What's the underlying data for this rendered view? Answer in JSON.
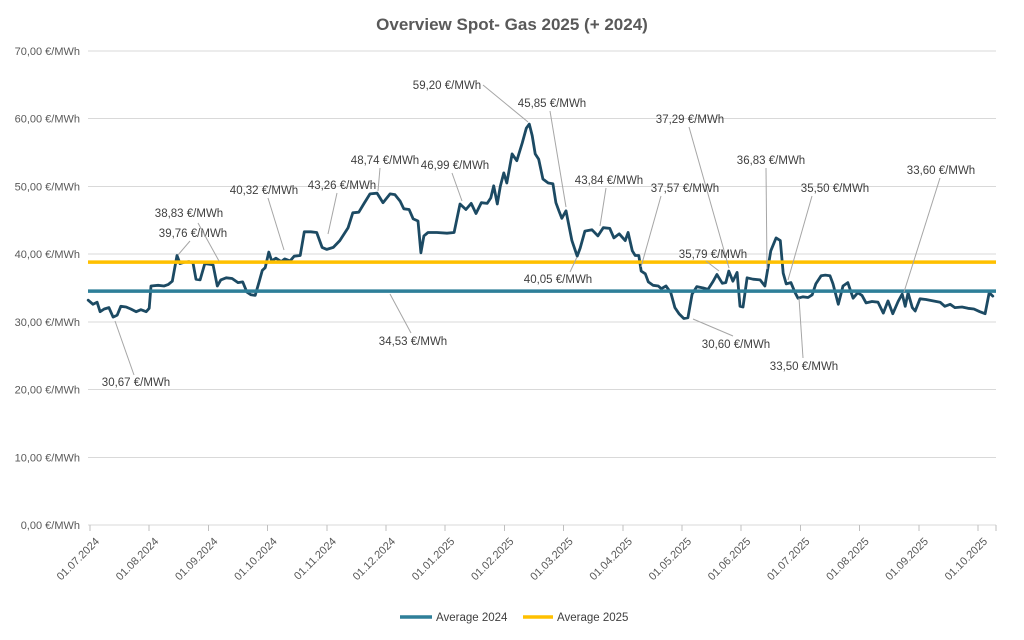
{
  "title": "Overview Spot- Gas 2025 (+ 2024)",
  "legend": {
    "items": [
      {
        "label": "Average 2024",
        "color": "#2E7F99"
      },
      {
        "label": "Average 2025",
        "color": "#FFC000"
      }
    ]
  },
  "colors": {
    "price_line": "#1C4A63",
    "average_2024_line": "#2E7F99",
    "average_2025_line": "#FFC000",
    "gridline": "#D9D9D9",
    "tick": "#BFBFBF",
    "axis_text": "#595959",
    "annotation_text": "#404040",
    "leader_line": "#A6A6A6",
    "average_2024_label": "#2E75B6",
    "average_2025_label": "#FFC000"
  },
  "chart_data": {
    "type": "line",
    "title": "Overview Spot- Gas 2025 (+ 2024)",
    "unit": "€/MWh",
    "ylim": [
      0,
      70
    ],
    "grid": true,
    "legend_position": "bottom",
    "y_ticks": [
      {
        "value": 0,
        "label": "0,00 €/MWh"
      },
      {
        "value": 10,
        "label": "10,00 €/MWh"
      },
      {
        "value": 20,
        "label": "20,00 €/MWh"
      },
      {
        "value": 30,
        "label": "30,00 €/MWh"
      },
      {
        "value": 40,
        "label": "40,00 €/MWh"
      },
      {
        "value": 50,
        "label": "50,00 €/MWh"
      },
      {
        "value": 60,
        "label": "60,00 €/MWh"
      },
      {
        "value": 70,
        "label": "70,00 €/MWh"
      }
    ],
    "x_ticks": [
      "01.07.2024",
      "01.08.2024",
      "01.09.2024",
      "01.10.2024",
      "01.11.2024",
      "01.12.2024",
      "01.01.2025",
      "01.02.2025",
      "01.03.2025",
      "01.04.2025",
      "01.05.2025",
      "01.06.2025",
      "01.07.2025",
      "01.08.2025",
      "01.09.2025",
      "01.10.2025"
    ],
    "averages": [
      {
        "name": "Average 2024",
        "value": 34.53,
        "label": "34,53 €/MWh",
        "color": "#2E7F99"
      },
      {
        "name": "Average 2025",
        "value": 38.83,
        "label": "38,83 €/MWh",
        "color": "#FFC000"
      }
    ],
    "series": [
      {
        "name": "Spot gas price",
        "color": "#1C4A63",
        "x_unit": "months since 01.07.2024",
        "points": [
          [
            -0.03,
            33.2
          ],
          [
            0.05,
            32.6
          ],
          [
            0.12,
            32.9
          ],
          [
            0.17,
            31.5
          ],
          [
            0.24,
            31.9
          ],
          [
            0.32,
            32.1
          ],
          [
            0.39,
            30.7
          ],
          [
            0.46,
            31.0
          ],
          [
            0.52,
            32.3
          ],
          [
            0.61,
            32.2
          ],
          [
            0.69,
            31.9
          ],
          [
            0.78,
            31.5
          ],
          [
            0.86,
            31.8
          ],
          [
            0.95,
            31.5
          ],
          [
            1.0,
            32.0
          ],
          [
            1.03,
            35.3
          ],
          [
            1.15,
            35.4
          ],
          [
            1.25,
            35.3
          ],
          [
            1.32,
            35.5
          ],
          [
            1.39,
            36.0
          ],
          [
            1.47,
            39.8
          ],
          [
            1.52,
            38.6
          ],
          [
            1.59,
            38.8
          ],
          [
            1.67,
            38.9
          ],
          [
            1.74,
            38.7
          ],
          [
            1.79,
            36.3
          ],
          [
            1.86,
            36.2
          ],
          [
            1.94,
            38.6
          ],
          [
            2.03,
            38.5
          ],
          [
            2.08,
            38.4
          ],
          [
            2.15,
            35.3
          ],
          [
            2.21,
            36.2
          ],
          [
            2.3,
            36.5
          ],
          [
            2.4,
            36.4
          ],
          [
            2.5,
            35.8
          ],
          [
            2.58,
            35.9
          ],
          [
            2.65,
            34.4
          ],
          [
            2.72,
            34.0
          ],
          [
            2.79,
            33.9
          ],
          [
            2.86,
            36.0
          ],
          [
            2.91,
            37.6
          ],
          [
            2.96,
            38.0
          ],
          [
            3.02,
            40.3
          ],
          [
            3.07,
            39.0
          ],
          [
            3.14,
            39.4
          ],
          [
            3.23,
            38.9
          ],
          [
            3.29,
            39.3
          ],
          [
            3.38,
            39.0
          ],
          [
            3.45,
            39.7
          ],
          [
            3.55,
            39.8
          ],
          [
            3.62,
            43.3
          ],
          [
            3.73,
            43.3
          ],
          [
            3.83,
            43.2
          ],
          [
            3.92,
            41.0
          ],
          [
            4.0,
            40.7
          ],
          [
            4.11,
            41.0
          ],
          [
            4.22,
            42.0
          ],
          [
            4.36,
            43.9
          ],
          [
            4.44,
            46.1
          ],
          [
            4.54,
            46.2
          ],
          [
            4.63,
            47.5
          ],
          [
            4.73,
            48.9
          ],
          [
            4.85,
            49.0
          ],
          [
            4.95,
            47.6
          ],
          [
            5.07,
            48.9
          ],
          [
            5.15,
            48.8
          ],
          [
            5.24,
            47.8
          ],
          [
            5.3,
            46.7
          ],
          [
            5.39,
            46.6
          ],
          [
            5.46,
            45.2
          ],
          [
            5.54,
            44.9
          ],
          [
            5.59,
            40.2
          ],
          [
            5.64,
            42.7
          ],
          [
            5.71,
            43.2
          ],
          [
            5.86,
            43.2
          ],
          [
            6.03,
            43.1
          ],
          [
            6.15,
            43.2
          ],
          [
            6.25,
            47.4
          ],
          [
            6.35,
            46.6
          ],
          [
            6.44,
            47.5
          ],
          [
            6.52,
            46.0
          ],
          [
            6.61,
            47.6
          ],
          [
            6.71,
            47.5
          ],
          [
            6.77,
            48.3
          ],
          [
            6.82,
            50.1
          ],
          [
            6.88,
            47.4
          ],
          [
            6.93,
            50.0
          ],
          [
            6.99,
            52.0
          ],
          [
            7.04,
            50.5
          ],
          [
            7.13,
            54.8
          ],
          [
            7.21,
            53.8
          ],
          [
            7.3,
            56.4
          ],
          [
            7.37,
            58.6
          ],
          [
            7.42,
            59.2
          ],
          [
            7.47,
            57.5
          ],
          [
            7.52,
            54.8
          ],
          [
            7.58,
            54.0
          ],
          [
            7.65,
            51.1
          ],
          [
            7.74,
            50.5
          ],
          [
            7.82,
            50.4
          ],
          [
            7.87,
            47.6
          ],
          [
            7.92,
            46.4
          ],
          [
            7.97,
            45.3
          ],
          [
            8.04,
            46.4
          ],
          [
            8.14,
            42.0
          ],
          [
            8.23,
            39.7
          ],
          [
            8.28,
            40.9
          ],
          [
            8.36,
            43.4
          ],
          [
            8.48,
            43.6
          ],
          [
            8.58,
            42.7
          ],
          [
            8.67,
            43.9
          ],
          [
            8.78,
            43.8
          ],
          [
            8.85,
            42.4
          ],
          [
            8.94,
            43.0
          ],
          [
            9.04,
            42.0
          ],
          [
            9.09,
            43.2
          ],
          [
            9.16,
            40.5
          ],
          [
            9.21,
            39.8
          ],
          [
            9.27,
            39.8
          ],
          [
            9.31,
            37.5
          ],
          [
            9.38,
            37.1
          ],
          [
            9.43,
            35.9
          ],
          [
            9.51,
            35.4
          ],
          [
            9.6,
            35.3
          ],
          [
            9.65,
            34.9
          ],
          [
            9.73,
            35.3
          ],
          [
            9.81,
            34.3
          ],
          [
            9.88,
            32.1
          ],
          [
            9.95,
            31.2
          ],
          [
            10.03,
            30.5
          ],
          [
            10.1,
            30.6
          ],
          [
            10.17,
            34.1
          ],
          [
            10.25,
            35.2
          ],
          [
            10.36,
            35.0
          ],
          [
            10.44,
            34.8
          ],
          [
            10.52,
            35.9
          ],
          [
            10.59,
            37.0
          ],
          [
            10.68,
            35.7
          ],
          [
            10.74,
            35.8
          ],
          [
            10.79,
            37.5
          ],
          [
            10.86,
            36.0
          ],
          [
            10.93,
            37.3
          ],
          [
            10.98,
            32.3
          ],
          [
            11.03,
            32.2
          ],
          [
            11.1,
            36.5
          ],
          [
            11.2,
            36.3
          ],
          [
            11.32,
            36.2
          ],
          [
            11.4,
            35.3
          ],
          [
            11.5,
            40.5
          ],
          [
            11.59,
            42.4
          ],
          [
            11.66,
            42.0
          ],
          [
            11.71,
            37.2
          ],
          [
            11.76,
            35.6
          ],
          [
            11.84,
            35.8
          ],
          [
            11.91,
            34.3
          ],
          [
            11.96,
            33.5
          ],
          [
            12.04,
            33.7
          ],
          [
            12.13,
            33.6
          ],
          [
            12.2,
            34.0
          ],
          [
            12.26,
            35.6
          ],
          [
            12.35,
            36.8
          ],
          [
            12.42,
            36.9
          ],
          [
            12.5,
            36.8
          ],
          [
            12.55,
            35.6
          ],
          [
            12.64,
            32.6
          ],
          [
            12.72,
            35.3
          ],
          [
            12.8,
            35.8
          ],
          [
            12.89,
            33.5
          ],
          [
            12.97,
            34.3
          ],
          [
            13.04,
            33.9
          ],
          [
            13.11,
            32.8
          ],
          [
            13.21,
            33.0
          ],
          [
            13.31,
            32.9
          ],
          [
            13.4,
            31.3
          ],
          [
            13.48,
            33.1
          ],
          [
            13.56,
            31.2
          ],
          [
            13.65,
            33.0
          ],
          [
            13.72,
            34.1
          ],
          [
            13.77,
            32.3
          ],
          [
            13.82,
            34.3
          ],
          [
            13.89,
            32.1
          ],
          [
            13.94,
            31.6
          ],
          [
            14.02,
            33.4
          ],
          [
            14.12,
            33.3
          ],
          [
            14.24,
            33.1
          ],
          [
            14.36,
            32.9
          ],
          [
            14.44,
            32.3
          ],
          [
            14.53,
            32.6
          ],
          [
            14.61,
            32.1
          ],
          [
            14.73,
            32.2
          ],
          [
            14.83,
            32.0
          ],
          [
            14.93,
            31.9
          ],
          [
            15.03,
            31.5
          ],
          [
            15.12,
            31.2
          ],
          [
            15.19,
            34.3
          ],
          [
            15.25,
            33.8
          ]
        ]
      }
    ],
    "annotations": [
      {
        "text": "30,67 €/MWh",
        "label": [
          136,
          386
        ],
        "line": [
          [
            134,
            375
          ],
          [
            115,
            321
          ]
        ]
      },
      {
        "text": "39,76 €/MWh",
        "label": [
          193,
          237
        ],
        "line": [
          [
            190,
            241
          ],
          [
            178,
            255
          ]
        ]
      },
      {
        "text": "38,83 €/MWh",
        "color": "#FFC000",
        "label": [
          189,
          217
        ],
        "line": [
          [
            198,
            223
          ],
          [
            219,
            261
          ]
        ]
      },
      {
        "text": "40,32 €/MWh",
        "label": [
          264,
          194
        ],
        "line": [
          [
            268,
            198
          ],
          [
            284,
            250
          ]
        ]
      },
      {
        "text": "43,26 €/MWh",
        "label": [
          342,
          189
        ],
        "line": [
          [
            337,
            193
          ],
          [
            328,
            234
          ]
        ]
      },
      {
        "text": "48,74 €/MWh",
        "label": [
          385,
          164
        ],
        "line": [
          [
            380,
            168
          ],
          [
            378,
            191
          ]
        ]
      },
      {
        "text": "46,99 €/MWh",
        "label": [
          455,
          169
        ],
        "line": [
          [
            452,
            173
          ],
          [
            462,
            201
          ]
        ]
      },
      {
        "text": "59,20 €/MWh",
        "label": [
          447,
          89
        ],
        "line": [
          [
            483,
            85
          ],
          [
            528,
            122
          ]
        ]
      },
      {
        "text": "45,85 €/MWh",
        "label": [
          552,
          107
        ],
        "line": [
          [
            550,
            111
          ],
          [
            566,
            207
          ]
        ]
      },
      {
        "text": "43,84 €/MWh",
        "label": [
          609,
          184
        ],
        "line": [
          [
            606,
            188
          ],
          [
            600,
            226
          ]
        ]
      },
      {
        "text": "40,05 €/MWh",
        "label": [
          558,
          283
        ],
        "line": [
          [
            570,
            272
          ],
          [
            577,
            257
          ]
        ]
      },
      {
        "text": "34,53 €/MWh",
        "color": "#2E75B6",
        "label": [
          413,
          345
        ],
        "line": [
          [
            411,
            333
          ],
          [
            390,
            294
          ]
        ]
      },
      {
        "text": "37,29 €/MWh",
        "label": [
          690,
          123
        ],
        "line": [
          [
            689,
            127
          ],
          [
            729,
            268
          ]
        ]
      },
      {
        "text": "37,57 €/MWh",
        "label": [
          685,
          192
        ],
        "line": [
          [
            661,
            196
          ],
          [
            641,
            267
          ]
        ]
      },
      {
        "text": "35,79 €/MWh",
        "label": [
          713,
          258
        ],
        "line": [
          [
            706,
            261
          ],
          [
            719,
            271
          ]
        ]
      },
      {
        "text": "36,83 €/MWh",
        "label": [
          771,
          164
        ],
        "line": [
          [
            766,
            168
          ],
          [
            767,
            269
          ]
        ]
      },
      {
        "text": "35,50 €/MWh",
        "label": [
          835,
          192
        ],
        "line": [
          [
            812,
            196
          ],
          [
            788,
            280
          ]
        ]
      },
      {
        "text": "30,60 €/MWh",
        "label": [
          736,
          348
        ],
        "line": [
          [
            733,
            336
          ],
          [
            693,
            319
          ]
        ]
      },
      {
        "text": "33,50 €/MWh",
        "label": [
          804,
          370
        ],
        "line": [
          [
            803,
            358
          ],
          [
            799,
            298
          ]
        ]
      },
      {
        "text": "33,60 €/MWh",
        "label": [
          941,
          174
        ],
        "line": [
          [
            940,
            178
          ],
          [
            904,
            292
          ]
        ]
      }
    ]
  }
}
